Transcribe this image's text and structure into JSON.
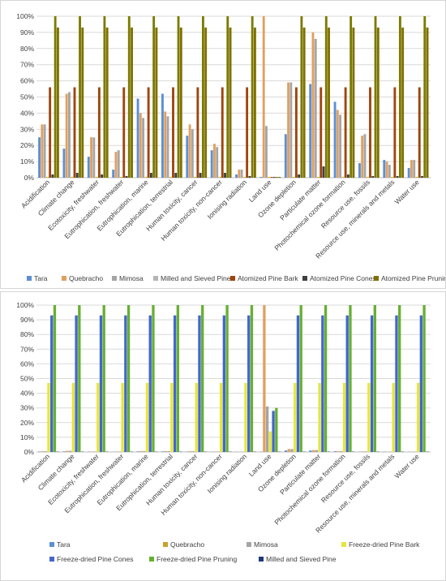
{
  "chart_data": [
    {
      "type": "bar",
      "ylim": [
        0,
        100
      ],
      "yticks": [
        "0%",
        "10%",
        "20%",
        "30%",
        "40%",
        "50%",
        "60%",
        "70%",
        "80%",
        "90%",
        "100%"
      ],
      "grid": true,
      "legend_position": "bottom",
      "categories": [
        "Acidification",
        "Climate change",
        "Ecotoxicity, freshwater",
        "Eutrophication, freshwater",
        "Eutrophication, marine",
        "Eutrophication, terrestrial",
        "Human toxicity, cancer",
        "Human toxicity, non-cancer",
        "Ionising radiation",
        "Land use",
        "Ozone depletion",
        "Particulate matter",
        "Photochemical ozone formation",
        "Resource use, fossils",
        "Resource use, minerals and metals",
        "Water use"
      ],
      "series": [
        {
          "name": "Tara",
          "color": "#5b8fd4",
          "values": [
            25,
            18,
            13,
            5,
            49,
            52,
            26,
            17,
            2,
            0.5,
            27,
            58,
            47,
            9,
            11,
            6
          ]
        },
        {
          "name": "Quebracho",
          "color": "#e0a060",
          "values": [
            33,
            52,
            25,
            16,
            40,
            41,
            33,
            21,
            5,
            100,
            59,
            90,
            42,
            26,
            10,
            11
          ]
        },
        {
          "name": "Mimosa",
          "color": "#a5a5a5",
          "values": [
            33,
            53,
            25,
            17,
            37,
            38,
            30,
            19,
            5,
            32,
            59,
            86,
            39,
            27,
            8,
            11
          ]
        },
        {
          "name": "Milled and Sieved Pine",
          "color": "#e6b800",
          "values": [
            0.5,
            0.5,
            0.5,
            0.5,
            0.5,
            0.5,
            0.5,
            0.5,
            0.5,
            0.5,
            0.5,
            0.5,
            0.5,
            0.5,
            0.5,
            0.5
          ]
        },
        {
          "name": "Atomized Pine Bark",
          "color": "#a0440d",
          "values": [
            56,
            56,
            56,
            56,
            56,
            56,
            56,
            56,
            56,
            0.5,
            56,
            56,
            56,
            56,
            56,
            56
          ]
        },
        {
          "name": "Atomized Pine Cones",
          "color": "#404040",
          "values": [
            2,
            3,
            2,
            1,
            3,
            3,
            3,
            3,
            1,
            0.5,
            2,
            7,
            2,
            1,
            1,
            1
          ]
        },
        {
          "name": "Atomized Pine Pruning",
          "color": "#7b7b00",
          "values": [
            100,
            100,
            100,
            100,
            100,
            100,
            100,
            100,
            100,
            0.5,
            100,
            100,
            100,
            100,
            100,
            100
          ]
        },
        {
          "name": "",
          "color": "#807000",
          "values": [
            93,
            93,
            93,
            93,
            93,
            93,
            93,
            93,
            93,
            0.5,
            93,
            93,
            93,
            93,
            93,
            93
          ]
        }
      ],
      "legend": [
        {
          "name": "Tara",
          "color": "#5b8fd4"
        },
        {
          "name": "Quebracho",
          "color": "#e0a060"
        },
        {
          "name": "Mimosa",
          "color": "#a5a5a5"
        },
        {
          "name": "Milled and Sieved Pine",
          "color": "#b5b5b5"
        },
        {
          "name": "Atomized Pine Bark",
          "color": "#a0440d"
        },
        {
          "name": "Atomized Pine Cones",
          "color": "#404040"
        },
        {
          "name": "Atomized Pine Pruning",
          "color": "#807000"
        }
      ]
    },
    {
      "type": "bar",
      "ylim": [
        0,
        100
      ],
      "yticks": [
        "0%",
        "10%",
        "20%",
        "30%",
        "40%",
        "50%",
        "60%",
        "70%",
        "80%",
        "90%",
        "100%"
      ],
      "grid": true,
      "legend_position": "bottom",
      "categories": [
        "Acidification",
        "Climate change",
        "Ecotoxicity, freshwater",
        "Eutrophication, freshwater",
        "Eutrophication, marine",
        "Eutrophication, terrestrial",
        "Human toxicity, cancer",
        "Human toxicity, non-cancer",
        "Ionising radiation",
        "Land use",
        "Ozone depletion",
        "Particulate matter",
        "Photochemical ozone formation",
        "Resource use, fossils",
        "Resource use, minerals and metals",
        "Water use"
      ],
      "series": [
        {
          "name": "Tara",
          "color": "#5b8fd4",
          "values": [
            0.3,
            0.4,
            0.2,
            0.1,
            0.4,
            0.4,
            0.3,
            0.2,
            0.1,
            0.2,
            1,
            1,
            0.5,
            0.2,
            0.2,
            0.1
          ]
        },
        {
          "name": "Quebracho",
          "color": "#e0a060",
          "values": [
            0.5,
            0.8,
            0.3,
            0.3,
            0.6,
            0.6,
            0.5,
            0.3,
            0.1,
            100,
            2,
            1.3,
            0.6,
            0.4,
            0.2,
            0.2
          ]
        },
        {
          "name": "Mimosa",
          "color": "#a5a5a5",
          "values": [
            0.5,
            0.8,
            0.3,
            0.3,
            0.6,
            0.6,
            0.5,
            0.3,
            0.1,
            31,
            2,
            1.3,
            0.6,
            0.4,
            0.2,
            0.2
          ]
        },
        {
          "name": "Freeze-dried Pine Bark",
          "color": "#e6e63a",
          "values": [
            47,
            47,
            47,
            47,
            47,
            47,
            47,
            47,
            47,
            14,
            47,
            47,
            47,
            47,
            47,
            47
          ]
        },
        {
          "name": "Freeze-dried Pine Cones",
          "color": "#4466cc",
          "values": [
            93,
            93,
            93,
            93,
            93,
            93,
            93,
            93,
            93,
            28,
            93,
            93,
            93,
            93,
            93,
            93
          ]
        },
        {
          "name": "Freeze-dried Pine Pruning",
          "color": "#66b032",
          "values": [
            100,
            100,
            100,
            100,
            100,
            100,
            100,
            100,
            100,
            30,
            100,
            100,
            100,
            100,
            100,
            100
          ]
        },
        {
          "name": "Milled and Sieved Pine",
          "color": "#1f3a7a",
          "values": [
            0.2,
            0.2,
            0.2,
            0.2,
            0.2,
            0.2,
            0.2,
            0.2,
            0.2,
            0.2,
            0.2,
            0.2,
            0.2,
            0.2,
            0.2,
            0.2
          ]
        }
      ],
      "legend": [
        {
          "name": "Tara",
          "color": "#5b8fd4"
        },
        {
          "name": "Quebracho",
          "color": "#c9a227"
        },
        {
          "name": "Mimosa",
          "color": "#a5a5a5"
        },
        {
          "name": "Freeze-dried Pine Bark",
          "color": "#e6e63a"
        },
        {
          "name": "Freeze-dried Pine Cones",
          "color": "#4466cc"
        },
        {
          "name": "Freeze-dried Pine Pruning",
          "color": "#66b032"
        },
        {
          "name": "Milled and Sieved Pine",
          "color": "#1f3a7a"
        }
      ]
    }
  ]
}
